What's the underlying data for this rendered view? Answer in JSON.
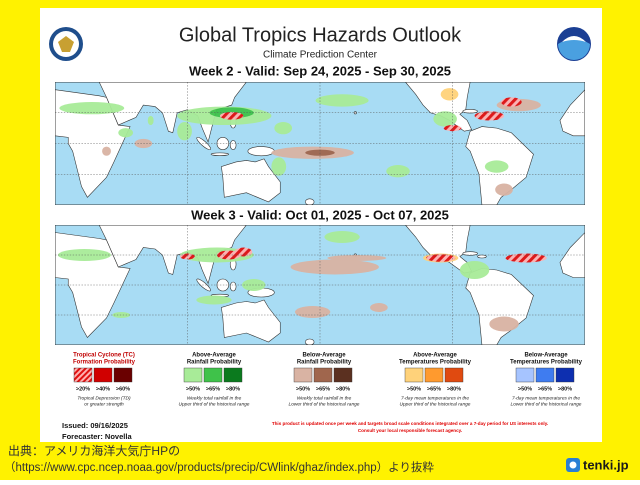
{
  "header": {
    "title": "Global Tropics Hazards Outlook",
    "subtitle": "Climate Prediction Center"
  },
  "maps": [
    {
      "heading": "Week 2 - Valid: Sep 24, 2025 - Sep 30, 2025"
    },
    {
      "heading": "Week 3 - Valid: Oct 01, 2025 - Oct 07, 2025"
    }
  ],
  "legend": [
    {
      "title": [
        "Tropical Cyclone (TC)",
        "Formation Probability"
      ],
      "levels": [
        ">20%",
        ">40%",
        ">60%"
      ],
      "colors": [
        "#f06060",
        "#d00000",
        "#6a0000"
      ],
      "note": [
        "Tropical Depression (TD)",
        "or greater strength"
      ]
    },
    {
      "title": [
        "Above-Average",
        "Rainfall Probability"
      ],
      "levels": [
        ">50%",
        ">65%",
        ">80%"
      ],
      "colors": [
        "#a8eb98",
        "#3fc24a",
        "#0b7a1e"
      ],
      "note": [
        "Weekly total rainfall in the",
        "Upper third of the historical range"
      ]
    },
    {
      "title": [
        "Below-Average",
        "Rainfall Probability"
      ],
      "levels": [
        ">50%",
        ">65%",
        ">80%"
      ],
      "colors": [
        "#d9b3a3",
        "#a0664d",
        "#5b3020"
      ],
      "note": [
        "Weekly total rainfall in the",
        "Lower third of the historical range"
      ]
    },
    {
      "title": [
        "Above-Average",
        "Temperatures Probability"
      ],
      "levels": [
        ">50%",
        ">65%",
        ">80%"
      ],
      "colors": [
        "#ffd27a",
        "#ff9a2e",
        "#e04a10"
      ],
      "note": [
        "7-day mean temperatures in the",
        "Upper third of the historical range"
      ]
    },
    {
      "title": [
        "Below-Average",
        "Temperatures Probability"
      ],
      "levels": [
        ">50%",
        ">65%",
        ">80%"
      ],
      "colors": [
        "#a6c4ff",
        "#3f7cf0",
        "#0d2fb0"
      ],
      "note": [
        "7-day mean temperatures in the",
        "Lower third of the historical range"
      ]
    }
  ],
  "issued": "Issued: 09/16/2025",
  "forecaster": "Forecaster: Novella",
  "notice": [
    "This product is updated once per week and targets broad scale conditions integrated over a 7-day period for US interests only.",
    "Consult your local responsible forecast agency."
  ],
  "source": [
    "出典：アメリカ海洋大気庁HPの",
    "（https://www.cpc.ncep.noaa.gov/products/precip/CWlink/ghaz/index.php）より抜粋"
  ],
  "brand": "tenki.jp"
}
